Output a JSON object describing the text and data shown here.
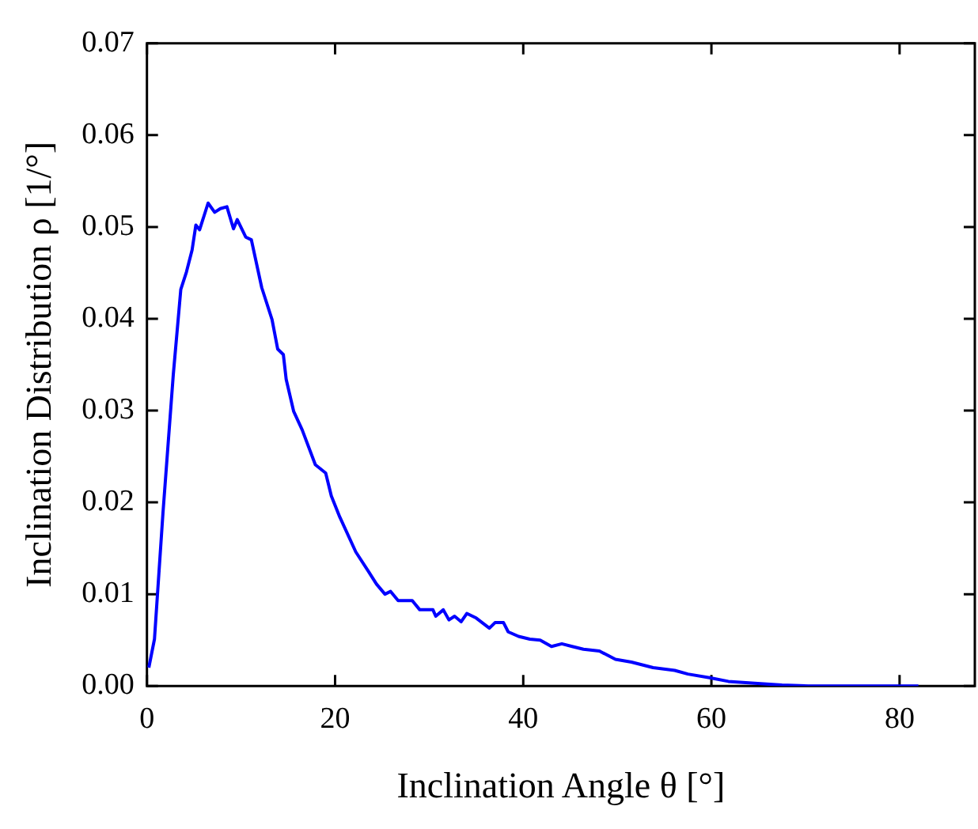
{
  "chart_data": {
    "type": "line",
    "xlabel": "Inclination Angle θ [°]",
    "ylabel": "Inclination Distribution ρ [1/°]",
    "xlim": [
      0,
      88
    ],
    "xticks": [
      0,
      20,
      40,
      60,
      80
    ],
    "ylim": [
      0,
      0.07
    ],
    "yticks": [
      {
        "value": 0,
        "label": "0.00"
      },
      0.01,
      0.02,
      0.03,
      0.04,
      0.05,
      0.06,
      0.07
    ],
    "grid": false,
    "legend": false,
    "marker": "none",
    "line_style": "solid",
    "series": [
      {
        "color": "#0000ff",
        "x": [
          0.2,
          0.8,
          1.7,
          2.8,
          3.6,
          4.2,
          4.8,
          5.2,
          5.6,
          6.5,
          7.2,
          7.8,
          8.5,
          9.2,
          9.6,
          10.5,
          11.1,
          12.2,
          13.3,
          13.9,
          14.5,
          14.8,
          15.6,
          16.5,
          17.9,
          19.0,
          19.6,
          20.5,
          22.2,
          23.6,
          24.4,
          25.3,
          25.9,
          26.7,
          28.2,
          29.0,
          30.4,
          30.7,
          31.5,
          32.1,
          32.7,
          33.4,
          34.0,
          35.0,
          36.4,
          37.0,
          37.9,
          38.4,
          39.5,
          40.7,
          41.8,
          43.0,
          44.1,
          45.2,
          46.4,
          48.1,
          49.8,
          51.5,
          53.8,
          56.1,
          57.5,
          59.8,
          61.8,
          64.6,
          67.5,
          70.3,
          82.0
        ],
        "values": [
          0.002,
          0.0051,
          0.0188,
          0.0339,
          0.0432,
          0.0451,
          0.0475,
          0.0502,
          0.0497,
          0.0526,
          0.0516,
          0.052,
          0.0522,
          0.0498,
          0.0508,
          0.0489,
          0.0486,
          0.0434,
          0.0399,
          0.0367,
          0.0361,
          0.0334,
          0.0299,
          0.0279,
          0.0241,
          0.0232,
          0.0207,
          0.0184,
          0.0146,
          0.0124,
          0.0111,
          0.01,
          0.0103,
          0.0093,
          0.0093,
          0.0083,
          0.0083,
          0.0076,
          0.0083,
          0.0072,
          0.0076,
          0.007,
          0.0079,
          0.0074,
          0.0063,
          0.0069,
          0.0069,
          0.0059,
          0.0054,
          0.0051,
          0.005,
          0.0043,
          0.0046,
          0.0043,
          0.004,
          0.0038,
          0.0029,
          0.0026,
          0.002,
          0.0017,
          0.0013,
          0.0009,
          0.0005,
          0.0003,
          0.0001,
          0,
          0
        ]
      }
    ]
  }
}
